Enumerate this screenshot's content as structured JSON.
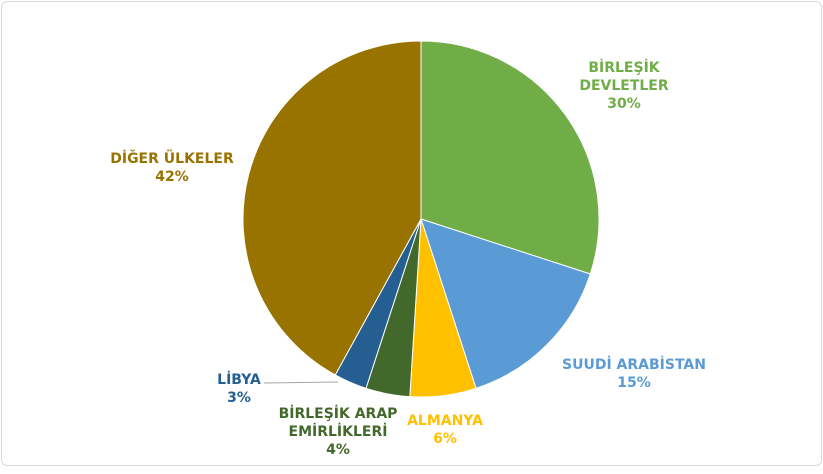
{
  "chart_data": {
    "type": "pie",
    "categories": [
      "BİRLEŞİK DEVLETLER",
      "SUUDİ ARABİSTAN",
      "ALMANYA",
      "BİRLEŞİK ARAP EMİRLİKLERİ",
      "LİBYA",
      "DİĞER ÜLKELER"
    ],
    "values": [
      30,
      15,
      6,
      4,
      3,
      42
    ],
    "value_labels": [
      "30%",
      "15%",
      "6%",
      "4%",
      "3%",
      "42%"
    ],
    "colors": [
      "#70ad47",
      "#5b9bd5",
      "#ffc000",
      "#43682b",
      "#255e91",
      "#997300"
    ]
  }
}
